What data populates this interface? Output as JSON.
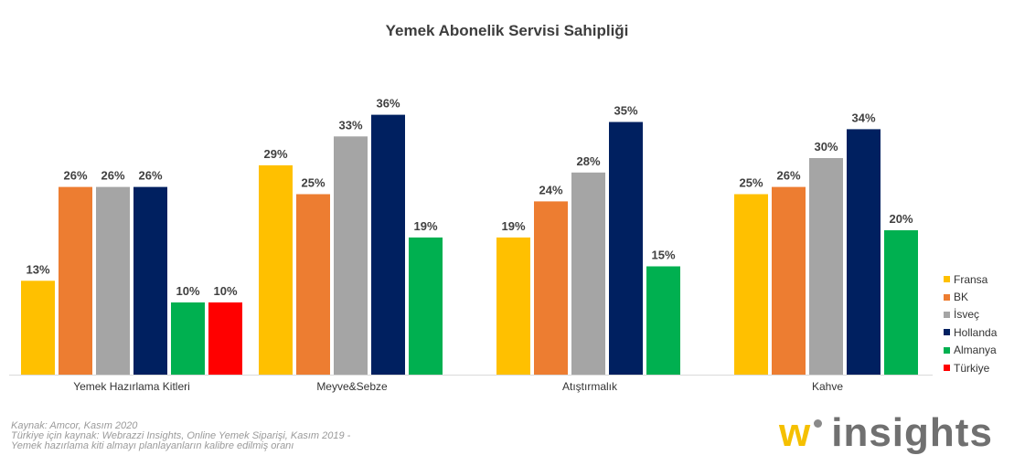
{
  "chart_data": {
    "type": "bar",
    "title": "Yemek Abonelik Servisi Sahipliği",
    "categories": [
      "Yemek Hazırlama Kitleri",
      "Meyve&Sebze",
      "Atıştırmalık",
      "Kahve"
    ],
    "series": [
      {
        "name": "Fransa",
        "color": "#ffc000",
        "values": [
          13,
          29,
          19,
          25
        ]
      },
      {
        "name": "BK",
        "color": "#ed7d31",
        "values": [
          26,
          25,
          24,
          26
        ]
      },
      {
        "name": "İsveç",
        "color": "#a5a5a5",
        "values": [
          26,
          33,
          28,
          30
        ]
      },
      {
        "name": "Hollanda",
        "color": "#002060",
        "values": [
          26,
          36,
          35,
          34
        ]
      },
      {
        "name": "Almanya",
        "color": "#00b050",
        "values": [
          10,
          19,
          15,
          20
        ]
      },
      {
        "name": "Türkiye",
        "color": "#ff0000",
        "values": [
          10,
          null,
          null,
          null
        ]
      }
    ],
    "value_suffix": "%",
    "ylim": [
      0,
      40
    ],
    "xlabel": "",
    "ylabel": "",
    "grid": false,
    "legend_position": "right"
  },
  "source": {
    "line1": "Kaynak: Amcor, Kasım 2020",
    "line2": "Türkiye için kaynak: Webrazzi Insights, Online Yemek Siparişi, Kasım 2019 -",
    "line3": "Yemek hazırlama kiti almayı planlayanların kalibre edilmiş oranı"
  },
  "logo": {
    "w": "w",
    "text": "insights"
  }
}
